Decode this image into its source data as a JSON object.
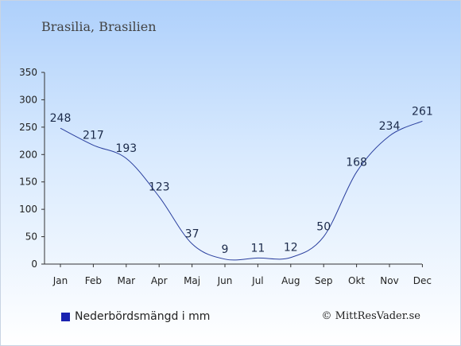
{
  "chart_data": {
    "type": "line",
    "title": "Brasilia, Brasilien",
    "categories": [
      "Jan",
      "Feb",
      "Mar",
      "Apr",
      "Maj",
      "Jun",
      "Jul",
      "Aug",
      "Sep",
      "Okt",
      "Nov",
      "Dec"
    ],
    "series": [
      {
        "name": "Nederbördsmängd i mm",
        "values": [
          248,
          217,
          193,
          123,
          37,
          9,
          11,
          12,
          50,
          168,
          234,
          261
        ]
      }
    ],
    "ylim": [
      0,
      350
    ],
    "yticks": [
      0,
      50,
      100,
      150,
      200,
      250,
      300,
      350
    ],
    "grid": false,
    "legend_position": "bottom-left",
    "line_color": "#2a3f9e",
    "legend_color": "#1a22b0"
  },
  "credit": "© MittResVader.se"
}
